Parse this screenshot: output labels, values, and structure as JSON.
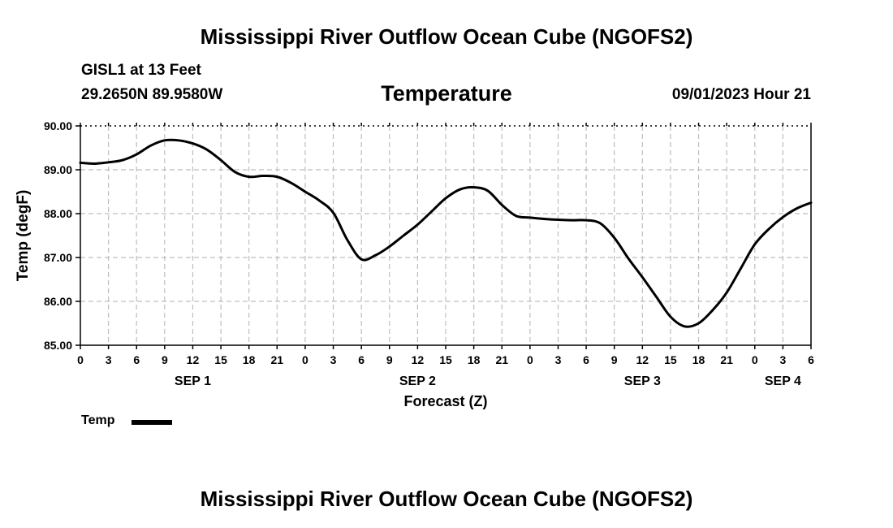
{
  "header": {
    "title": "Mississippi River Outflow Ocean Cube (NGOFS2)",
    "station": "GISL1 at 13 Feet",
    "coordinates": "29.2650N  89.9580W",
    "variable": "Temperature",
    "datetime": "09/01/2023 Hour 21"
  },
  "footer": {
    "title": "Mississippi River Outflow Ocean Cube (NGOFS2)"
  },
  "legend": {
    "label": "Temp"
  },
  "chart_data": {
    "type": "line",
    "title": "Temperature",
    "xlabel": "Forecast (Z)",
    "ylabel": "Temp (degF)",
    "ylim": [
      85,
      90
    ],
    "yticks": [
      "85.00",
      "86.00",
      "87.00",
      "88.00",
      "89.00",
      "90.00"
    ],
    "xlim": [
      0,
      78
    ],
    "xticks": [
      0,
      3,
      6,
      9,
      12,
      15,
      18,
      21,
      24,
      27,
      30,
      33,
      36,
      39,
      42,
      45,
      48,
      51,
      54,
      57,
      60,
      63,
      66,
      69,
      72,
      75,
      78
    ],
    "xtick_labels": [
      "0",
      "3",
      "6",
      "9",
      "12",
      "15",
      "18",
      "21",
      "0",
      "3",
      "6",
      "9",
      "12",
      "15",
      "18",
      "21",
      "0",
      "3",
      "6",
      "9",
      "12",
      "15",
      "18",
      "21",
      "0",
      "3",
      "6"
    ],
    "day_labels": [
      {
        "hour": 12,
        "label": "SEP 1"
      },
      {
        "hour": 36,
        "label": "SEP 2"
      },
      {
        "hour": 60,
        "label": "SEP 3"
      },
      {
        "hour": 75,
        "label": "SEP 4"
      }
    ],
    "grid": true,
    "legend_position": "bottom-left",
    "series": [
      {
        "name": "Temp",
        "x": [
          0,
          1.5,
          3,
          4.5,
          6,
          7.5,
          9,
          10.5,
          12,
          13.5,
          15,
          16.5,
          18,
          19.5,
          21,
          22.5,
          24,
          25.5,
          27,
          28.5,
          30,
          31.5,
          33,
          34.5,
          36,
          37.5,
          39,
          40.5,
          42,
          43.5,
          45,
          46.5,
          48,
          49.5,
          51,
          52.5,
          54,
          55.5,
          57,
          58.5,
          60,
          61.5,
          63,
          64.5,
          66,
          67.5,
          69,
          70.5,
          72,
          73.5,
          75,
          76.5,
          78
        ],
        "values": [
          89.16,
          89.14,
          89.17,
          89.22,
          89.35,
          89.55,
          89.67,
          89.67,
          89.6,
          89.46,
          89.22,
          88.95,
          88.84,
          88.86,
          88.84,
          88.7,
          88.5,
          88.3,
          88.02,
          87.4,
          86.96,
          87.05,
          87.25,
          87.5,
          87.75,
          88.05,
          88.35,
          88.55,
          88.6,
          88.52,
          88.2,
          87.95,
          87.91,
          87.88,
          87.86,
          87.85,
          87.85,
          87.78,
          87.45,
          86.98,
          86.55,
          86.1,
          85.65,
          85.43,
          85.5,
          85.8,
          86.2,
          86.75,
          87.3,
          87.65,
          87.92,
          88.12,
          88.25
        ]
      }
    ]
  }
}
